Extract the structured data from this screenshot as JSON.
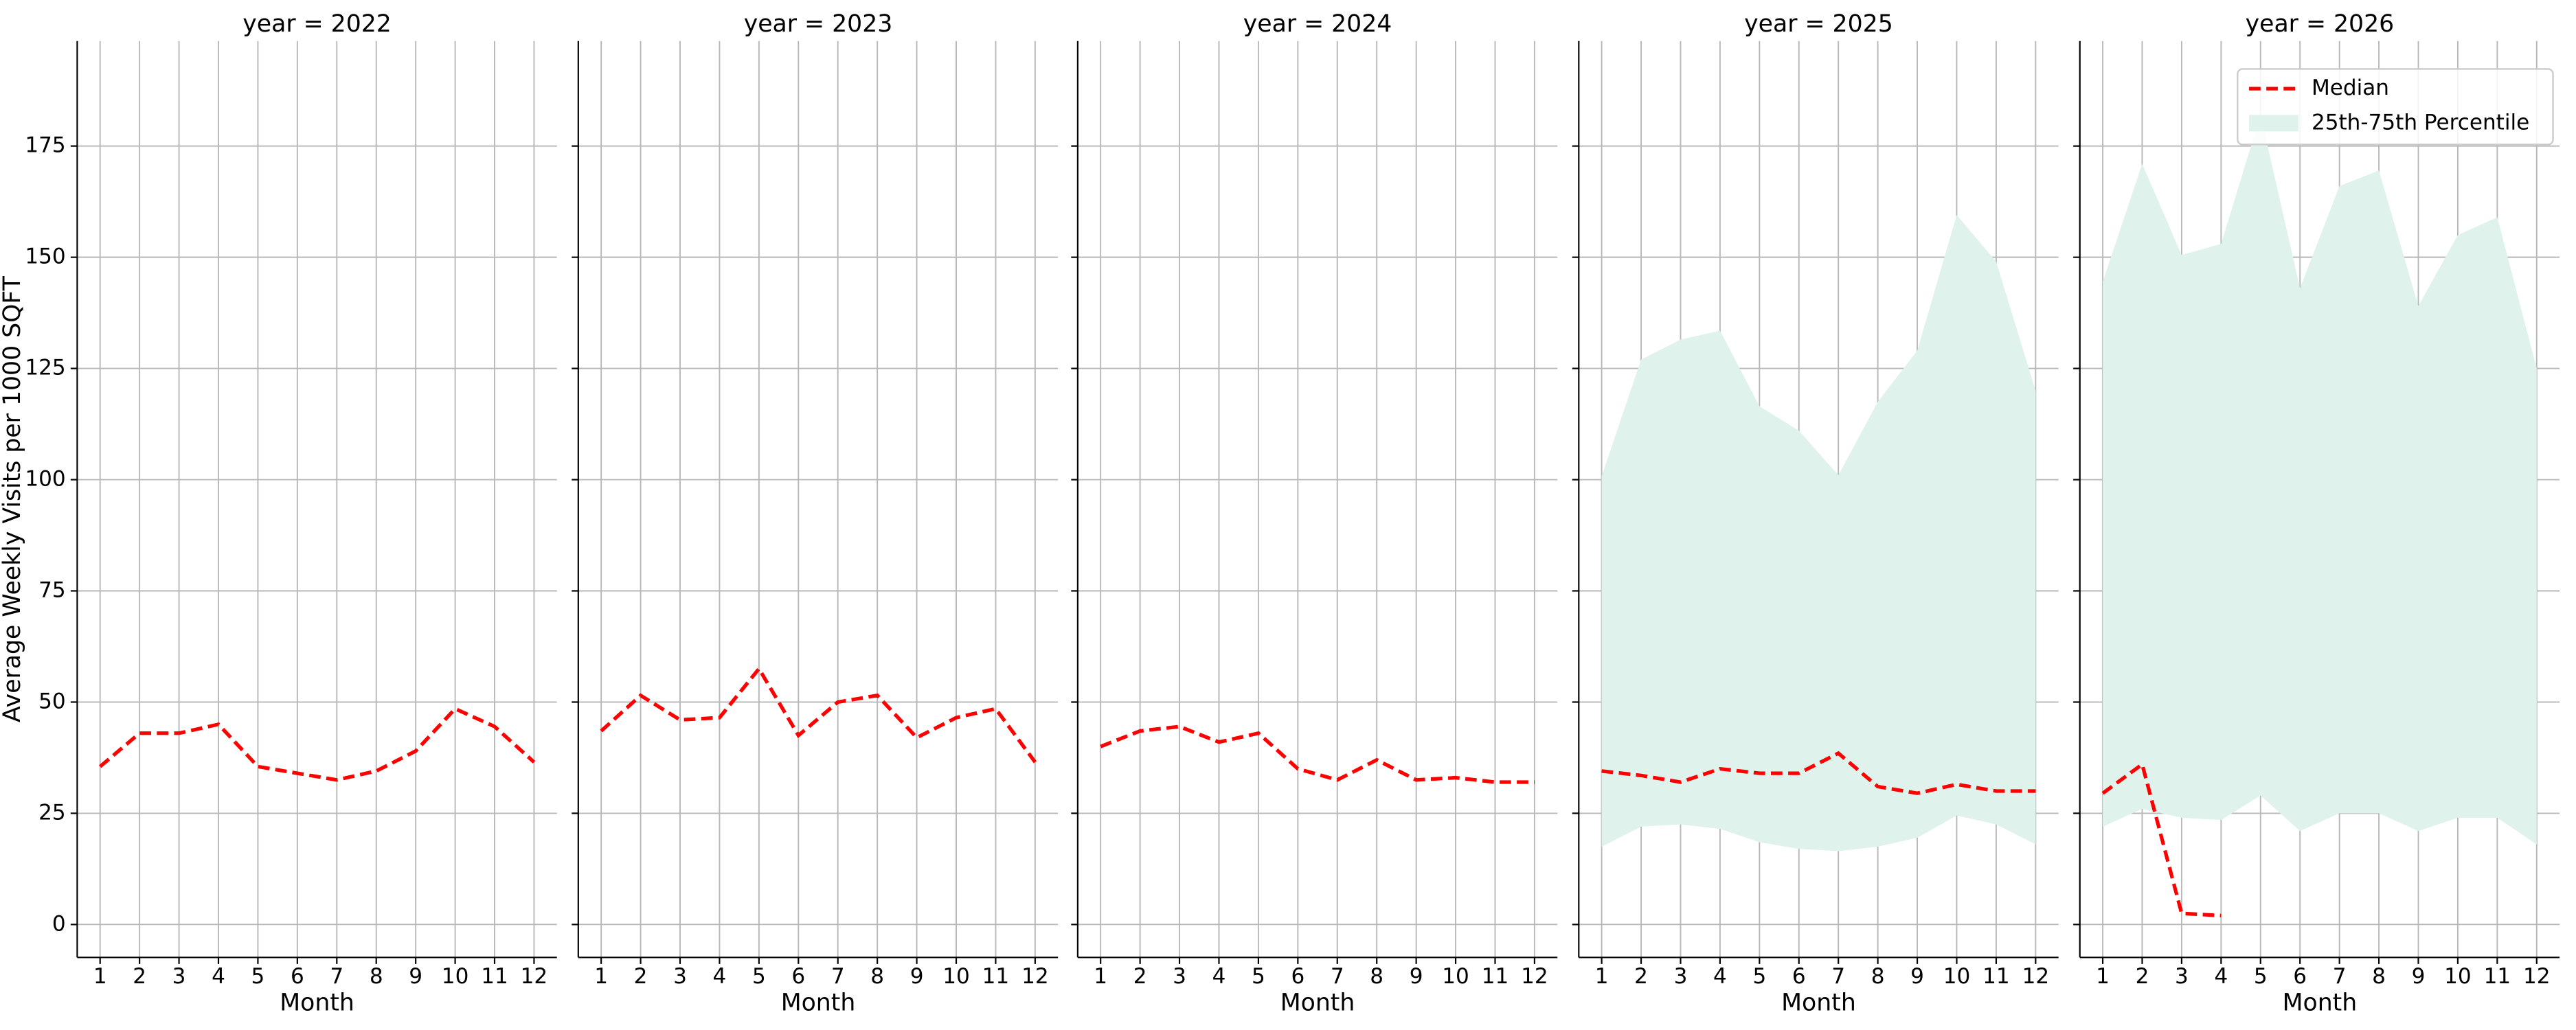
{
  "chart_data": [
    {
      "type": "line",
      "title": "year = 2022",
      "xlabel": "Month",
      "ylabel": "Average Weekly Visits per 1000 SQFT",
      "x": [
        1,
        2,
        3,
        4,
        5,
        6,
        7,
        8,
        9,
        10,
        11,
        12
      ],
      "xlim": [
        0.42,
        12.58
      ],
      "xticks": [
        1,
        2,
        3,
        4,
        5,
        6,
        7,
        8,
        9,
        10,
        11,
        12
      ],
      "ylim": [
        -7.4,
        198.6
      ],
      "yticks": [
        0,
        25,
        50,
        75,
        100,
        125,
        150,
        175
      ],
      "grid": true,
      "series": [
        {
          "color": "#ff0000",
          "values": [
            35.5,
            43,
            43,
            45,
            35.5,
            34,
            32.5,
            34.5,
            39,
            48.5,
            44.5,
            36.5
          ]
        }
      ]
    },
    {
      "type": "line",
      "title": "year = 2023",
      "xlabel": "Month",
      "x": [
        1,
        2,
        3,
        4,
        5,
        6,
        7,
        8,
        9,
        10,
        11,
        12
      ],
      "xlim": [
        0.42,
        12.58
      ],
      "xticks": [
        1,
        2,
        3,
        4,
        5,
        6,
        7,
        8,
        9,
        10,
        11,
        12
      ],
      "ylim": [
        -7.4,
        198.6
      ],
      "yticks": [
        0,
        25,
        50,
        75,
        100,
        125,
        150,
        175
      ],
      "grid": true,
      "series": [
        {
          "color": "#ff0000",
          "values": [
            43.5,
            51.5,
            46,
            46.5,
            57.5,
            42.5,
            50,
            51.5,
            42,
            46.5,
            48.5,
            36.5
          ]
        }
      ]
    },
    {
      "type": "line",
      "title": "year = 2024",
      "xlabel": "Month",
      "x": [
        1,
        2,
        3,
        4,
        5,
        6,
        7,
        8,
        9,
        10,
        11,
        12
      ],
      "xlim": [
        0.42,
        12.58
      ],
      "xticks": [
        1,
        2,
        3,
        4,
        5,
        6,
        7,
        8,
        9,
        10,
        11,
        12
      ],
      "ylim": [
        -7.4,
        198.6
      ],
      "yticks": [
        0,
        25,
        50,
        75,
        100,
        125,
        150,
        175
      ],
      "grid": true,
      "series": [
        {
          "color": "#ff0000",
          "values": [
            40,
            43.5,
            44.5,
            41,
            43,
            35,
            32.5,
            37,
            32.5,
            33,
            32,
            32
          ]
        }
      ]
    },
    {
      "type": "line",
      "title": "year = 2025",
      "xlabel": "Month",
      "x": [
        1,
        2,
        3,
        4,
        5,
        6,
        7,
        8,
        9,
        10,
        11,
        12
      ],
      "xlim": [
        0.42,
        12.58
      ],
      "xticks": [
        1,
        2,
        3,
        4,
        5,
        6,
        7,
        8,
        9,
        10,
        11,
        12
      ],
      "ylim": [
        -7.4,
        198.6
      ],
      "yticks": [
        0,
        25,
        50,
        75,
        100,
        125,
        150,
        175
      ],
      "grid": true,
      "series": [
        {
          "color": "#ff0000",
          "values": [
            34.5,
            33.5,
            32,
            35,
            34,
            34,
            38.5,
            31,
            29.5,
            31.5,
            30,
            30
          ]
        },
        {
          "color": "#dff2ec",
          "lower": [
            17.5,
            22,
            22.5,
            21.5,
            18.5,
            17,
            16.5,
            17.5,
            19.5,
            24.5,
            22.5,
            18
          ],
          "upper": [
            100.8,
            127,
            131.5,
            133.5,
            116.5,
            111,
            101,
            117.5,
            129,
            159.5,
            149,
            120
          ]
        }
      ]
    },
    {
      "type": "line",
      "title": "year = 2026",
      "xlabel": "Month",
      "legend": "upper right",
      "x": [
        1,
        2,
        3,
        4,
        5,
        6,
        7,
        8,
        9,
        10,
        11,
        12
      ],
      "xlim": [
        0.42,
        12.58
      ],
      "xticks": [
        1,
        2,
        3,
        4,
        5,
        6,
        7,
        8,
        9,
        10,
        11,
        12
      ],
      "ylim": [
        -7.4,
        198.6
      ],
      "yticks": [
        0,
        25,
        50,
        75,
        100,
        125,
        150,
        175
      ],
      "grid": true,
      "series": [
        {
          "name": "Median",
          "color": "#ff0000",
          "values": [
            29.5,
            36,
            2.5,
            2,
            null,
            null,
            null,
            null,
            null,
            null,
            null,
            null
          ]
        },
        {
          "name": "25th-75th Percentile",
          "color": "#dff2ec",
          "lower": [
            22,
            26,
            24,
            23.5,
            29,
            21,
            25,
            25,
            21,
            24,
            24,
            18
          ],
          "upper": [
            144.5,
            171,
            150.5,
            153,
            182,
            143,
            166,
            169.5,
            139,
            155,
            159,
            125
          ]
        }
      ]
    }
  ]
}
